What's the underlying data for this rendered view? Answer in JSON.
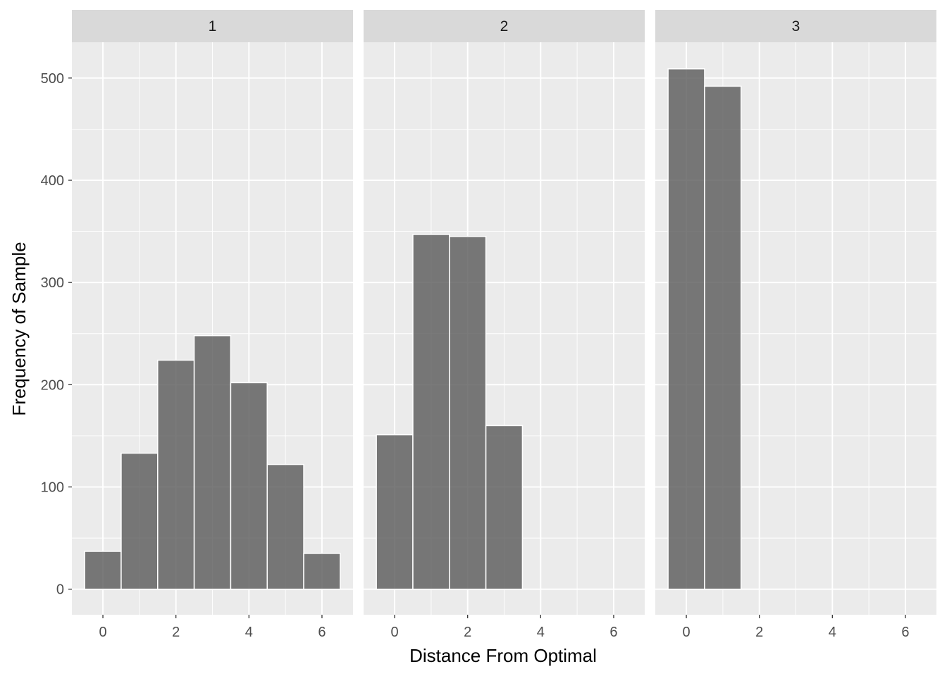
{
  "chart_data": {
    "type": "bar",
    "subtype": "faceted-histogram",
    "xlabel": "Distance From Optimal",
    "ylabel": "Frequency of Sample",
    "xlim": [
      -0.85,
      6.85
    ],
    "ylim": [
      -25,
      535
    ],
    "x_ticks": [
      0,
      2,
      4,
      6
    ],
    "y_ticks": [
      0,
      100,
      200,
      300,
      400,
      500
    ],
    "grid": true,
    "legend": "none",
    "colors": {
      "bar_fill": "#595959",
      "bar_opacity": 0.8,
      "bar_outline": "#ffffff",
      "panel_bg": "#ebebeb",
      "strip_bg": "#d9d9d9",
      "grid": "#ffffff"
    },
    "facets": [
      {
        "label": "1",
        "x": [
          0,
          1,
          2,
          3,
          4,
          5,
          6
        ],
        "values": [
          37,
          133,
          224,
          248,
          202,
          122,
          35
        ]
      },
      {
        "label": "2",
        "x": [
          0,
          1,
          2,
          3
        ],
        "values": [
          151,
          347,
          345,
          160
        ]
      },
      {
        "label": "3",
        "x": [
          0,
          1
        ],
        "values": [
          509,
          492
        ]
      }
    ]
  }
}
